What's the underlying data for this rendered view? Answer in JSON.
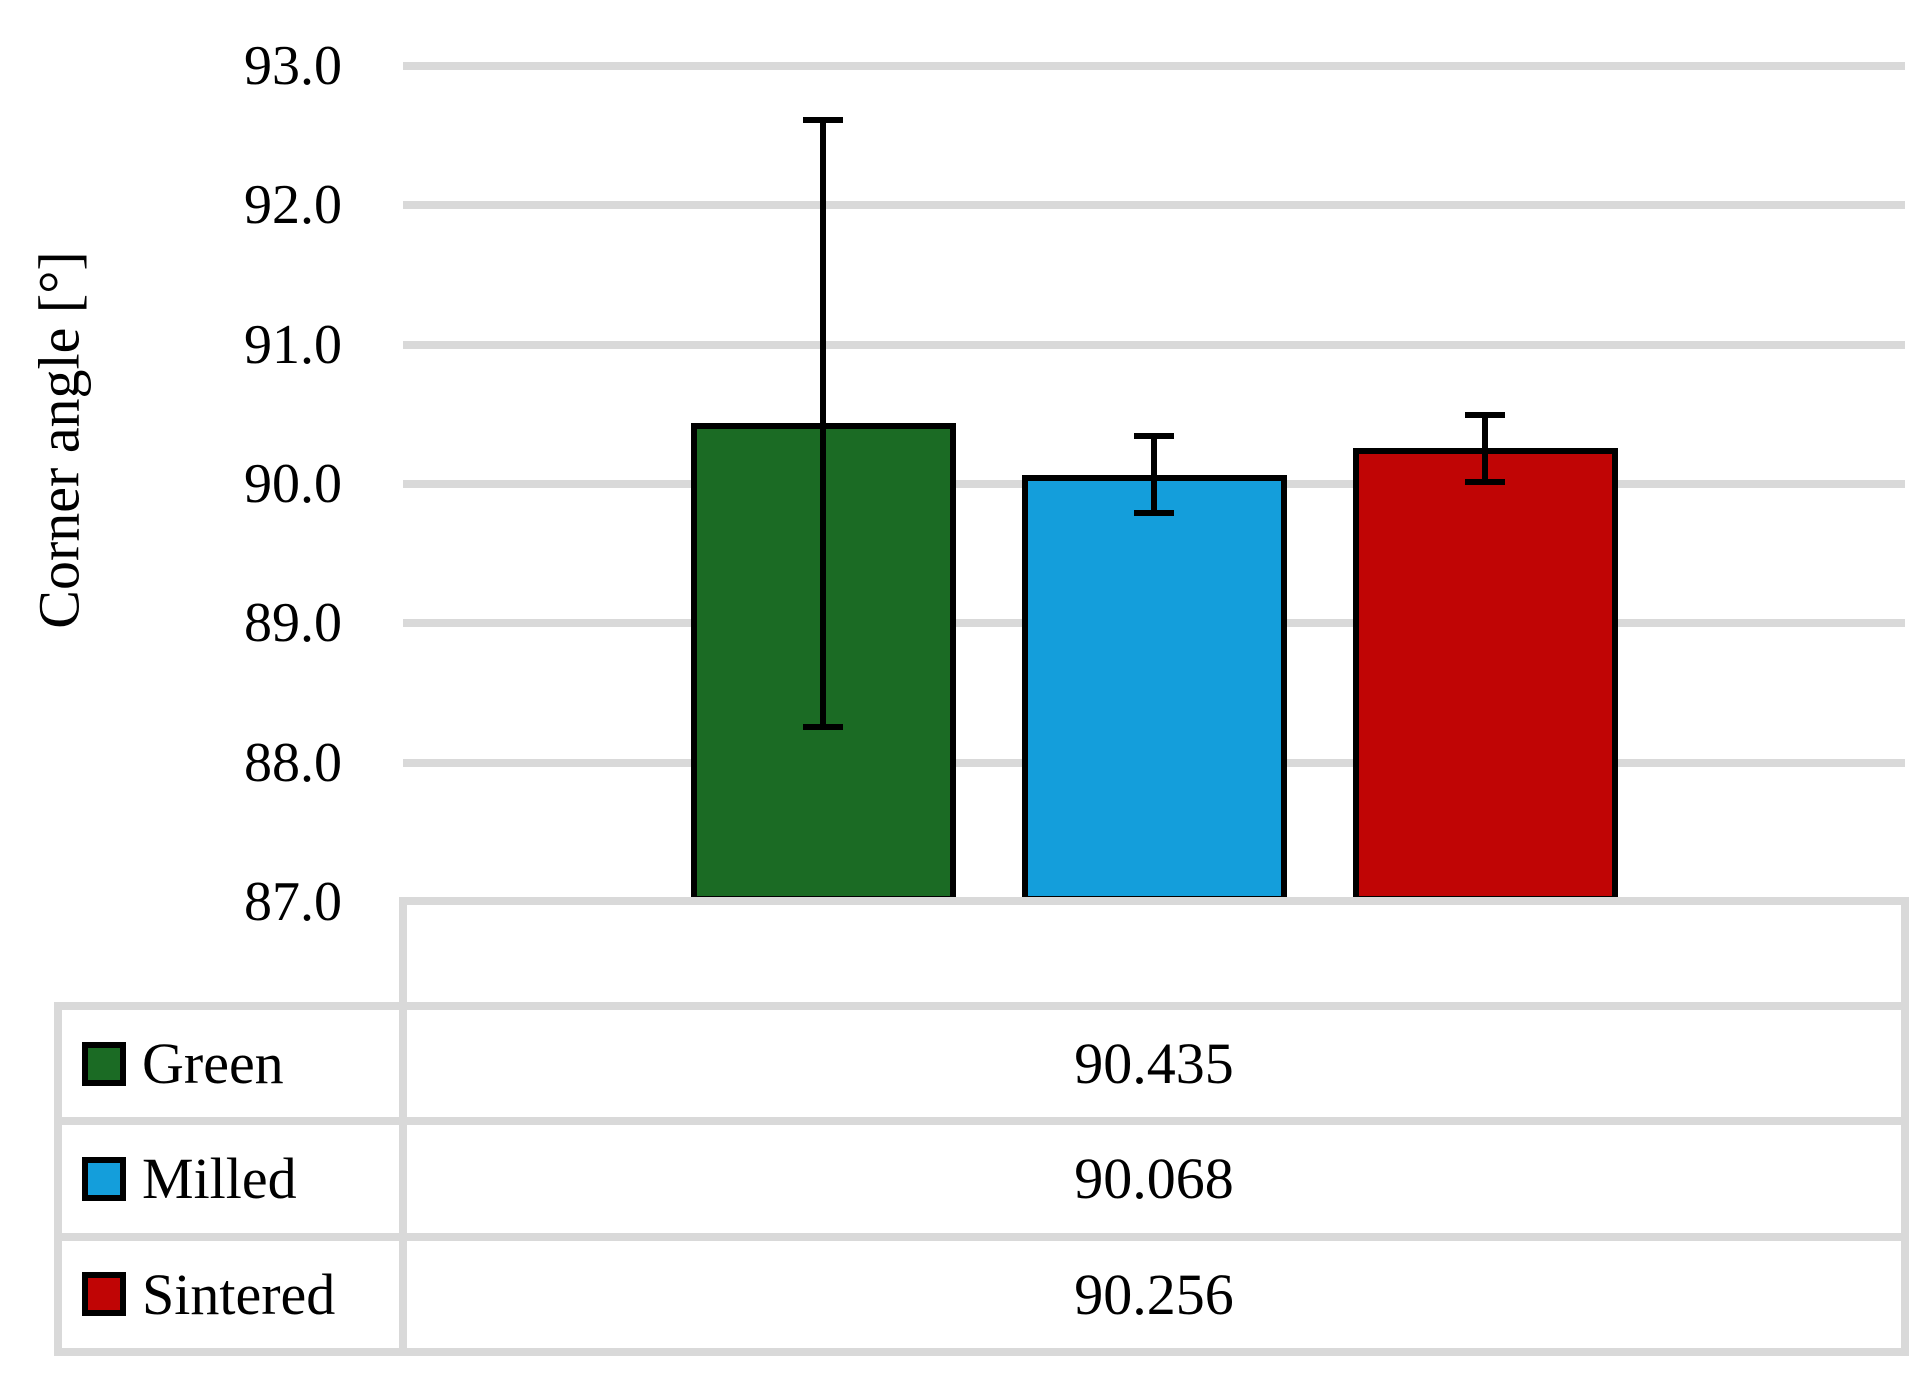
{
  "chart_data": {
    "type": "bar",
    "title": "",
    "ylabel": "Corner angle [°]",
    "categories": [
      "Green",
      "Milled",
      "Sintered"
    ],
    "series": [
      {
        "name": "Corner angle",
        "values": [
          90.435,
          90.068,
          90.256
        ],
        "errors": [
          2.2,
          0.3,
          0.26
        ]
      }
    ],
    "bar_colors": [
      "#1B6B24",
      "#149EDB",
      "#C00505"
    ],
    "ylim": [
      87.0,
      93.0
    ],
    "yticks": [
      93.0,
      92.0,
      91.0,
      90.0,
      89.0,
      88.0,
      87.0
    ],
    "ytick_labels": [
      "93.0",
      "92.0",
      "91.0",
      "90.0",
      "89.0",
      "88.0",
      "87.0"
    ],
    "grid": "horizontal-major",
    "legend_position": "table-below"
  },
  "table": {
    "rows": [
      {
        "label": "Green",
        "swatch_color": "#1B6B24",
        "value": "90.435"
      },
      {
        "label": "Milled",
        "swatch_color": "#149EDB",
        "value": "90.068"
      },
      {
        "label": "Sintered",
        "swatch_color": "#C00505",
        "value": "90.256"
      }
    ]
  },
  "colors": {
    "grid": "#D9D9D9",
    "bar_border": "#000000",
    "error_bar": "#000000",
    "text": "#000000",
    "background": "#FFFFFF"
  }
}
